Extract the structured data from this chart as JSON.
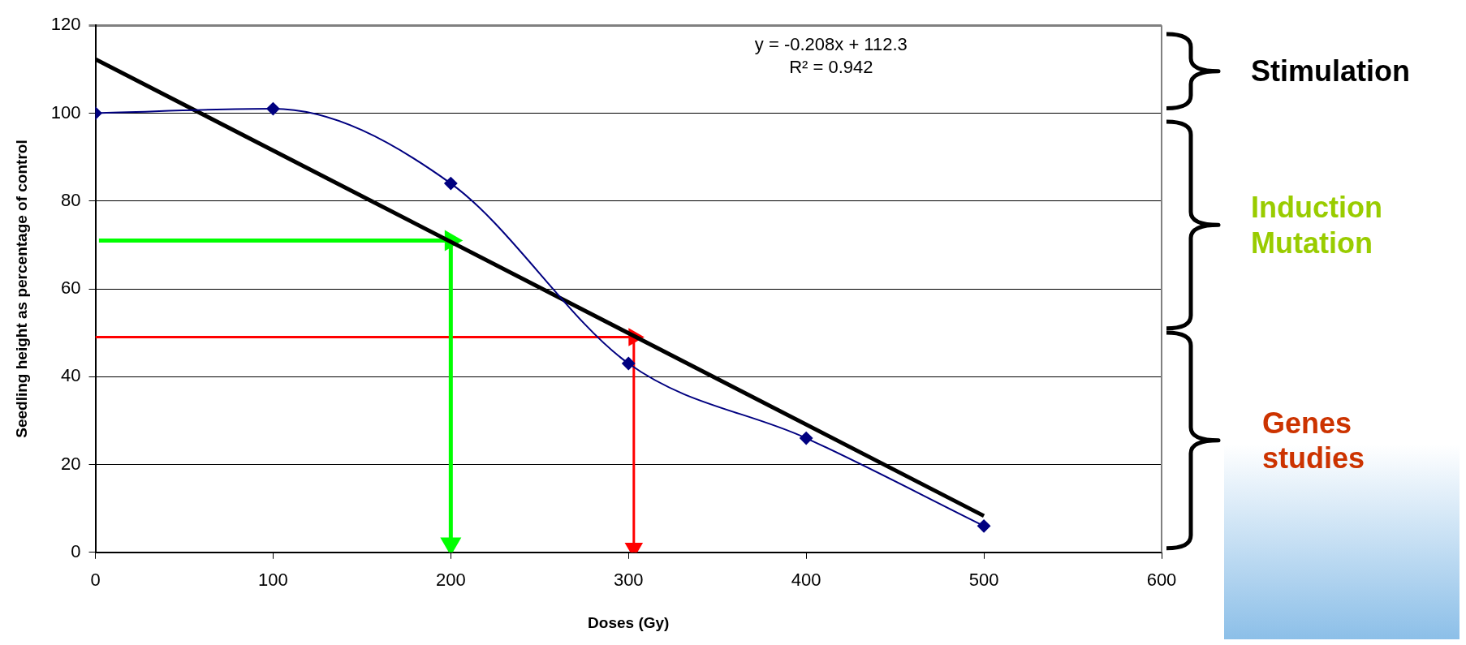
{
  "chart_data": {
    "type": "scatter",
    "xlabel": "Doses (Gy)",
    "ylabel": "Seedling height as percentage of control",
    "xlim": [
      0,
      600
    ],
    "xticks": [
      0,
      100,
      200,
      300,
      400,
      500,
      600
    ],
    "ylim": [
      0,
      120
    ],
    "yticks": [
      0,
      20,
      40,
      60,
      80,
      100,
      120
    ],
    "grid": "y",
    "legend": false,
    "series": [
      {
        "type": "line",
        "color": "#000080",
        "marker": "diamond",
        "x": [
          0,
          100,
          200,
          300,
          400,
          500
        ],
        "values": [
          100,
          101,
          84,
          43,
          26,
          6
        ]
      },
      {
        "type": "line",
        "color": "#000000",
        "marker": "none",
        "x": [
          0,
          500
        ],
        "values": [
          112.3,
          8.3
        ]
      },
      {
        "type": "line",
        "color": "#00ff00",
        "marker": "triangle",
        "x": [
          2,
          200
        ],
        "values": [
          71,
          71
        ]
      },
      {
        "type": "line",
        "color": "#00ff00",
        "marker": "triangle",
        "x": [
          200,
          200
        ],
        "values": [
          71,
          2
        ]
      },
      {
        "type": "line",
        "color": "#ff0000",
        "marker": "triangle",
        "x": [
          0,
          303
        ],
        "values": [
          49,
          49
        ]
      },
      {
        "type": "line",
        "color": "#ff0000",
        "marker": "triangle",
        "x": [
          303,
          303
        ],
        "values": [
          49,
          1
        ]
      }
    ],
    "annotations": [
      "y = -0.208x + 112.3",
      "R² = 0.942",
      "Stimulation",
      "Induction Mutation",
      "Genes studies"
    ]
  }
}
